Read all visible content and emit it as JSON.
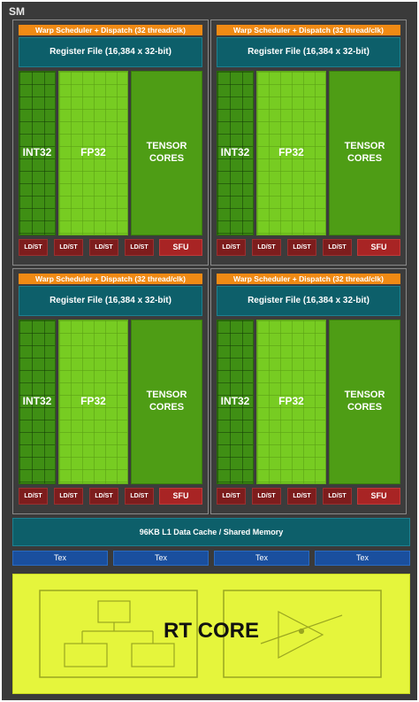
{
  "sm_label": "SM",
  "quadrant": {
    "warp_scheduler": "Warp Scheduler + Dispatch (32 thread/clk)",
    "register_file": "Register File (16,384 x 32-bit)",
    "int32": "INT32",
    "fp32": "FP32",
    "tensor_line1": "TENSOR",
    "tensor_line2": "CORES",
    "ldst": "LD/ST",
    "sfu": "SFU"
  },
  "l1_cache": "96KB L1 Data Cache / Shared Memory",
  "tex": [
    "Tex",
    "Tex",
    "Tex",
    "Tex"
  ],
  "rt_core": "RT CORE",
  "colors": {
    "background": "#3a3a3a",
    "warp_scheduler": "#f08a14",
    "register_file": "#0d5f6a",
    "int32": "#3f8f14",
    "fp32": "#77cc22",
    "tensor": "#4e9d15",
    "ldst": "#7d1d1d",
    "sfu": "#a82424",
    "tex": "#1a4f9e",
    "rt_core": "#e5f53c"
  }
}
